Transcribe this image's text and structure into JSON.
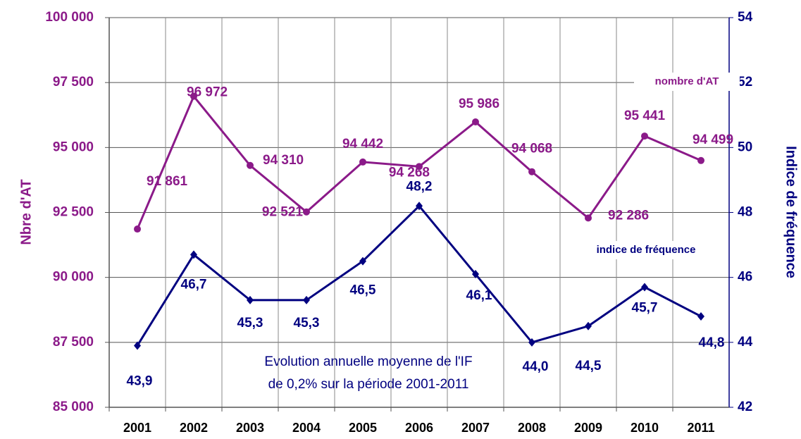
{
  "chart_data": {
    "type": "line",
    "categories": [
      "2001",
      "2002",
      "2003",
      "2004",
      "2005",
      "2006",
      "2007",
      "2008",
      "2009",
      "2010",
      "2011"
    ],
    "series": [
      {
        "name": "nombre d'AT",
        "color": "#8b1a89",
        "axis": "y",
        "values": [
          91861,
          96972,
          94310,
          92521,
          94442,
          94268,
          95986,
          94068,
          92286,
          95441,
          94499
        ],
        "value_labels": [
          "91 861",
          "96 972",
          "94 310",
          "92 521",
          "94 442",
          "94 268",
          "95 986",
          "94 068",
          "92 286",
          "95 441",
          "94 499"
        ]
      },
      {
        "name": "indice de fréquence",
        "color": "#000080",
        "axis": "y2",
        "values": [
          43.9,
          46.7,
          45.3,
          45.3,
          46.5,
          48.2,
          46.1,
          44.0,
          44.5,
          45.7,
          44.8
        ],
        "value_labels": [
          "43,9",
          "46,7",
          "45,3",
          "45,3",
          "46,5",
          "48,2",
          "46,1",
          "44,0",
          "44,5",
          "45,7",
          "44,8"
        ]
      }
    ],
    "ylabel": "Nbre d'AT",
    "y2label": "Indice de fréquence",
    "ylim": [
      85000,
      100000
    ],
    "yticks": [
      {
        "value": 85000,
        "label": "85 000"
      },
      {
        "value": 87500,
        "label": "87 500"
      },
      {
        "value": 90000,
        "label": "90 000"
      },
      {
        "value": 92500,
        "label": "92 500"
      },
      {
        "value": 95000,
        "label": "95 000"
      },
      {
        "value": 97500,
        "label": "97 500"
      },
      {
        "value": 100000,
        "label": "100 000"
      }
    ],
    "y2lim": [
      42,
      54
    ],
    "y2ticks": [
      42,
      44,
      46,
      48,
      50,
      52,
      54
    ],
    "grid": true,
    "annotations": [
      "Evolution annuelle moyenne de l'IF",
      "de 0,2% sur la période 2001-2011"
    ]
  }
}
